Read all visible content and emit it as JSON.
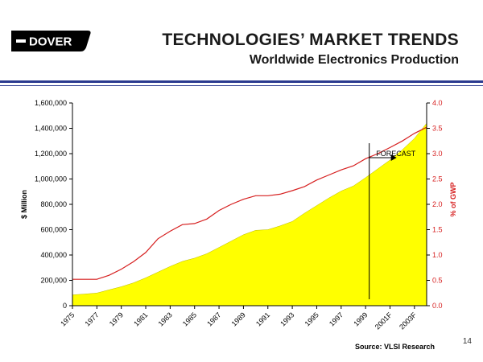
{
  "header": {
    "logo_text": "DOVER",
    "title": "TECHNOLOGIES’ MARKET TRENDS",
    "subtitle": "Worldwide Electronics Production"
  },
  "footer": {
    "source": "Source: VLSI Research",
    "page_number": "14"
  },
  "colors": {
    "area_fill": "#ffff00",
    "line_color": "#d61f1f",
    "rule_color": "#2b3a8f",
    "right_axis_color": "#d61f1f"
  },
  "chart_data": {
    "type": "area",
    "title": "TECHNOLOGIES’ MARKET TRENDS",
    "subtitle": "Worldwide Electronics Production",
    "ylabel": "$ Million",
    "y2label": "% of GWP",
    "ylim": [
      0,
      1600000
    ],
    "y2lim": [
      0,
      4.0
    ],
    "yticks": [
      "0",
      "200,000",
      "400,000",
      "600,000",
      "800,000",
      "1,000,000",
      "1,200,000",
      "1,400,000",
      "1,600,000"
    ],
    "y2ticks": [
      "0.0",
      "0.5",
      "1.0",
      "1.5",
      "2.0",
      "2.5",
      "3.0",
      "3.5",
      "4.0"
    ],
    "xticks": [
      "1975",
      "1977",
      "1979",
      "1981",
      "1983",
      "1985",
      "1987",
      "1989",
      "1991",
      "1993",
      "1995",
      "1997",
      "1999",
      "2001F",
      "2003F"
    ],
    "x": [
      1975,
      1976,
      1977,
      1978,
      1979,
      1980,
      1981,
      1982,
      1983,
      1984,
      1985,
      1986,
      1987,
      1988,
      1989,
      1990,
      1991,
      1992,
      1993,
      1994,
      1995,
      1996,
      1997,
      1998,
      1999,
      2000,
      2001,
      2002,
      2003,
      2004
    ],
    "series": [
      {
        "name": "$ Million",
        "axis": "left",
        "style": "area",
        "values": [
          85000,
          92000,
          100000,
          125000,
          150000,
          180000,
          220000,
          265000,
          310000,
          350000,
          375000,
          410000,
          460000,
          510000,
          560000,
          595000,
          600000,
          630000,
          665000,
          730000,
          790000,
          850000,
          905000,
          945000,
          1010000,
          1080000,
          1150000,
          1230000,
          1320000,
          1440000
        ]
      },
      {
        "name": "% of GWP",
        "axis": "right",
        "style": "line",
        "values": [
          0.52,
          0.52,
          0.52,
          0.6,
          0.72,
          0.87,
          1.05,
          1.32,
          1.47,
          1.6,
          1.62,
          1.71,
          1.88,
          2.0,
          2.1,
          2.17,
          2.17,
          2.2,
          2.27,
          2.35,
          2.48,
          2.58,
          2.68,
          2.76,
          2.9,
          3.0,
          3.12,
          3.25,
          3.4,
          3.52
        ]
      }
    ],
    "annotations": [
      {
        "text": "FORECAST",
        "x": 2000,
        "y2": 3.0
      }
    ],
    "forecast_start": 1999.3,
    "legend": "none",
    "grid": false
  }
}
